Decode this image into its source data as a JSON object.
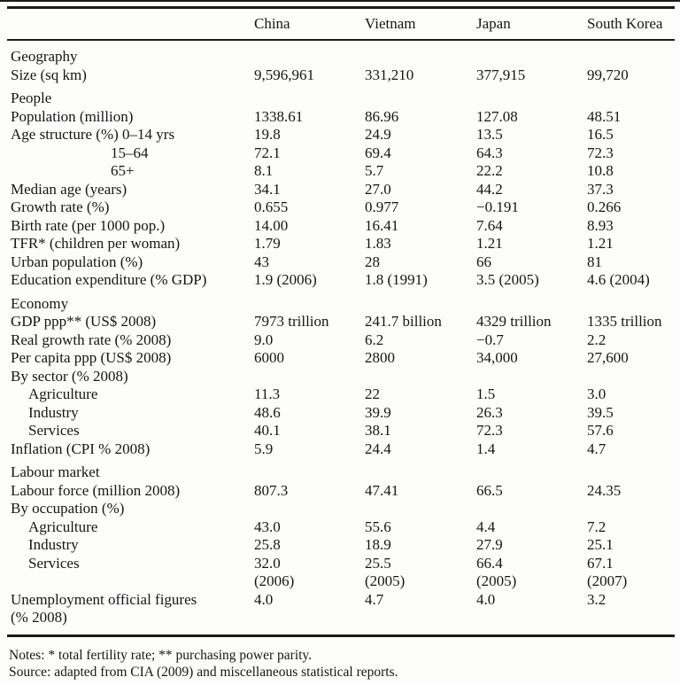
{
  "table": {
    "columns": [
      "China",
      "Vietnam",
      "Japan",
      "South Korea"
    ],
    "sections": [
      {
        "title": "Geography",
        "rows": [
          {
            "label": "Size (sq km)",
            "indent": "none",
            "values": [
              "9,596,961",
              "331,210",
              "377,915",
              "99,720"
            ]
          }
        ]
      },
      {
        "title": "People",
        "rows": [
          {
            "label": "Population (million)",
            "indent": "none",
            "values": [
              "1338.61",
              "86.96",
              "127.08",
              "48.51"
            ]
          },
          {
            "label": "Age structure (%) 0–14 yrs",
            "indent": "none",
            "values": [
              "19.8",
              "24.9",
              "13.5",
              "16.5"
            ]
          },
          {
            "label": "15–64",
            "indent": "deep",
            "values": [
              "72.1",
              "69.4",
              "64.3",
              "72.3"
            ]
          },
          {
            "label": "65+",
            "indent": "deep",
            "values": [
              "8.1",
              "5.7",
              "22.2",
              "10.8"
            ]
          },
          {
            "label": "Median age (years)",
            "indent": "none",
            "values": [
              "34.1",
              "27.0",
              "44.2",
              "37.3"
            ]
          },
          {
            "label": "Growth rate (%)",
            "indent": "none",
            "values": [
              "0.655",
              "0.977",
              "−0.191",
              "0.266"
            ]
          },
          {
            "label": "Birth rate (per 1000 pop.)",
            "indent": "none",
            "values": [
              "14.00",
              "16.41",
              "7.64",
              "8.93"
            ]
          },
          {
            "label": "TFR* (children per woman)",
            "indent": "none",
            "values": [
              "1.79",
              "1.83",
              "1.21",
              "1.21"
            ]
          },
          {
            "label": "Urban population (%)",
            "indent": "none",
            "values": [
              "43",
              "28",
              "66",
              "81"
            ]
          },
          {
            "label": "Education expenditure (% GDP)",
            "indent": "none",
            "values": [
              "1.9 (2006)",
              "1.8 (1991)",
              "3.5 (2005)",
              "4.6 (2004)"
            ]
          }
        ]
      },
      {
        "title": "Economy",
        "rows": [
          {
            "label": "GDP ppp** (US$ 2008)",
            "indent": "none",
            "values": [
              "7973 trillion",
              "241.7 billion",
              "4329 trillion",
              "1335 trillion"
            ]
          },
          {
            "label": "Real growth rate (% 2008)",
            "indent": "none",
            "values": [
              "9.0",
              "6.2",
              "−0.7",
              "2.2"
            ]
          },
          {
            "label": "Per capita ppp (US$ 2008)",
            "indent": "none",
            "values": [
              "6000",
              "2800",
              "34,000",
              "27,600"
            ]
          },
          {
            "label": "By sector (% 2008)",
            "indent": "none",
            "values": [
              "",
              "",
              "",
              ""
            ]
          },
          {
            "label": "Agriculture",
            "indent": "sub",
            "values": [
              "11.3",
              "22",
              "1.5",
              "3.0"
            ]
          },
          {
            "label": "Industry",
            "indent": "sub",
            "values": [
              "48.6",
              "39.9",
              "26.3",
              "39.5"
            ]
          },
          {
            "label": "Services",
            "indent": "sub",
            "values": [
              "40.1",
              "38.1",
              "72.3",
              "57.6"
            ]
          },
          {
            "label": "Inflation (CPI % 2008)",
            "indent": "none",
            "values": [
              "5.9",
              "24.4",
              "1.4",
              "4.7"
            ]
          }
        ]
      },
      {
        "title": "Labour market",
        "rows": [
          {
            "label": "Labour force (million 2008)",
            "indent": "none",
            "values": [
              "807.3",
              "47.41",
              "66.5",
              "24.35"
            ]
          },
          {
            "label": "By occupation (%)",
            "indent": "none",
            "values": [
              "",
              "",
              "",
              ""
            ]
          },
          {
            "label": "Agriculture",
            "indent": "sub",
            "values": [
              "43.0",
              "55.6",
              "4.4",
              "7.2"
            ]
          },
          {
            "label": "Industry",
            "indent": "sub",
            "values": [
              "25.8",
              "18.9",
              "27.9",
              "25.1"
            ]
          },
          {
            "label": "Services",
            "indent": "sub",
            "values": [
              "32.0",
              "25.5",
              "66.4",
              "67.1"
            ],
            "values2": [
              "(2006)",
              "(2005)",
              "(2005)",
              "(2007)"
            ]
          },
          {
            "label": "Unemployment official figures",
            "label2": "(% 2008)",
            "indent": "none",
            "values": [
              "4.0",
              "4.7",
              "4.0",
              "3.2"
            ]
          }
        ]
      }
    ],
    "notes": "Notes: * total fertility rate; ** purchasing power parity.",
    "source": "Source: adapted from CIA (2009) and miscellaneous statistical reports."
  }
}
